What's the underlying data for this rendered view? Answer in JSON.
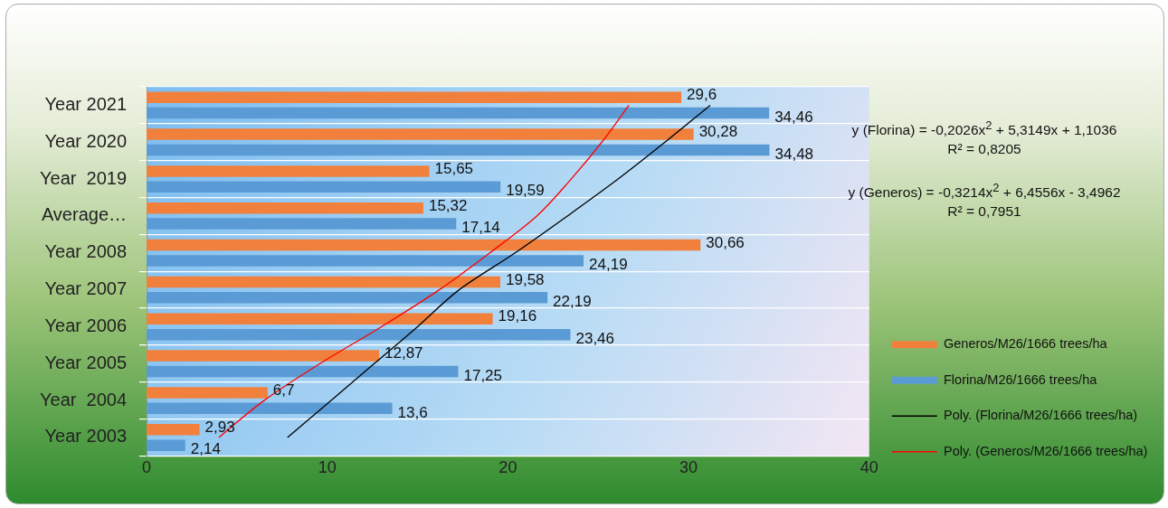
{
  "chart_data": {
    "type": "bar",
    "orientation": "horizontal",
    "categories": [
      "Year 2021",
      "Year 2020",
      "Year  2019",
      "Average…",
      "Year 2008",
      "Year 2007",
      "Year 2006",
      "Year 2005",
      "Year  2004",
      "Year 2003"
    ],
    "series": [
      {
        "name": "Generos/M26/1666 trees/ha",
        "color": "#f0803c",
        "values": [
          29.6,
          30.28,
          15.65,
          15.32,
          30.66,
          19.58,
          19.16,
          12.87,
          6.7,
          2.93
        ],
        "value_labels": [
          "29,6",
          "30,28",
          "15,65",
          "15,32",
          "30,66",
          "19,58",
          "19,16",
          "12,87",
          "6,7",
          "2,93"
        ]
      },
      {
        "name": "Florina/M26/1666 trees/ha",
        "color": "#5b9bd5",
        "values": [
          34.46,
          34.48,
          19.59,
          17.14,
          24.19,
          22.19,
          23.46,
          17.25,
          13.6,
          2.14
        ],
        "value_labels": [
          "34,46",
          "34,48",
          "19,59",
          "17,14",
          "24,19",
          "22,19",
          "23,46",
          "17,25",
          "13,6",
          "2,14"
        ]
      },
      {
        "name": "Poly. (Florina/M26/1666 trees/ha)",
        "type": "line",
        "color": "#000000",
        "marker": "none",
        "values": [
          31.2,
          28.7,
          26.1,
          23.3,
          20.4,
          17.3,
          15.0,
          12.6,
          10.2,
          7.8
        ]
      },
      {
        "name": "Poly. (Generos/M26/1666 trees/ha)",
        "type": "line",
        "color": "#ff0000",
        "marker": "none",
        "values": [
          26.7,
          25.2,
          23.5,
          21.6,
          19.0,
          16.2,
          13.0,
          9.6,
          6.5,
          4.0
        ]
      }
    ],
    "xlim": [
      0,
      40
    ],
    "xticks": [
      0,
      10,
      20,
      30,
      40
    ],
    "grid": "y",
    "legend": "right",
    "annotations": [
      "y (Florina) = -0,2026x$^{2}$ + 5,3149x + 1,1036",
      "R² = 0,8205",
      "y (Generos) = -0,3214x$^{2}$ + 6,4556x - 3,4962",
      "R² = 0,7951"
    ]
  }
}
